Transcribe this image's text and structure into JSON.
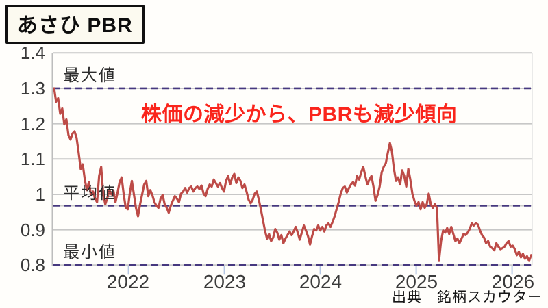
{
  "page": {
    "background": "#fffefb"
  },
  "title_box": {
    "label": "あさひ PBR"
  },
  "annotation": {
    "text": "株価の減少から、PBRも減少傾向",
    "color": "#fa251c"
  },
  "source": {
    "text": "出典　銘柄スカウター"
  },
  "chart_data": {
    "type": "line",
    "title": "あさひ PBR",
    "xlabel": "",
    "ylabel": "PBR",
    "legend": "none",
    "grid": "horizontal",
    "x_axis": {
      "range": [
        2021.21,
        2026.21
      ],
      "ticks": [
        2022,
        2023,
        2024,
        2025,
        2026
      ],
      "tick_labels": [
        "2022",
        "2023",
        "2024",
        "2025",
        "2026"
      ]
    },
    "y_axis": {
      "range": [
        0.8,
        1.4
      ],
      "tick_values": [
        1.4,
        1.3,
        1.2,
        1.1,
        1.0,
        0.9,
        0.8
      ],
      "tick_labels": [
        "1.4",
        "1.3",
        "1.2",
        "1.1",
        "1",
        "0.9",
        "0.8"
      ],
      "gridline_values": [
        1.4,
        1.2,
        1.1,
        1.0,
        0.9
      ]
    },
    "ref_lines": [
      {
        "label": "最大値",
        "value": 1.3
      },
      {
        "label": "平均値",
        "value": 0.968
      },
      {
        "label": "最小値",
        "value": 0.8
      }
    ],
    "colors": {
      "series": "#bd4b47",
      "gridline": "#c7c7c7",
      "axis": "#bdbdbd",
      "ref_dash": "#46387f",
      "ref_base": "#cbcbcb",
      "tick": "#b5c7e4"
    },
    "series": [
      {
        "name": "PBR",
        "color": "#bd4b47",
        "x_unit": "decimal_year",
        "x_first": 2021.224,
        "x_step": 0.02135,
        "values": [
          1.3,
          1.262,
          1.272,
          1.228,
          1.243,
          1.198,
          1.212,
          1.168,
          1.155,
          1.172,
          1.178,
          1.16,
          1.118,
          1.072,
          1.085,
          1.042,
          1.012,
          1.035,
          0.998,
          1.008,
          0.988,
          0.978,
          1.052,
          1.078,
          1.0,
          0.972,
          0.99,
          1.012,
          1.0,
          1.01,
          0.978,
          1.005,
          1.035,
          1.048,
          1.0,
          0.962,
          0.958,
          1.005,
          1.038,
          1.0,
          0.962,
          0.938,
          0.972,
          1.0,
          1.028,
          1.038,
          0.995,
          1.012,
          0.998,
          0.978,
          0.968,
          0.962,
          0.988,
          0.998,
          0.972,
          0.962,
          0.948,
          0.968,
          0.982,
          0.995,
          0.988,
          0.978,
          1.002,
          1.008,
          1.018,
          1.005,
          1.018,
          1.022,
          1.008,
          1.018,
          1.022,
          1.015,
          1.025,
          1.002,
          0.995,
          1.015,
          1.028,
          1.022,
          1.042,
          1.032,
          1.022,
          1.032,
          1.018,
          1.008,
          1.038,
          1.052,
          1.028,
          1.048,
          1.058,
          1.032,
          1.048,
          1.038,
          1.018,
          1.028,
          1.008,
          0.985,
          0.975,
          0.985,
          1.002,
          1.008,
          0.985,
          0.958,
          0.928,
          0.898,
          0.875,
          0.888,
          0.868,
          0.878,
          0.902,
          0.892,
          0.872,
          0.885,
          0.862,
          0.875,
          0.885,
          0.895,
          0.885,
          0.895,
          0.908,
          0.892,
          0.872,
          0.892,
          0.912,
          0.898,
          0.882,
          0.858,
          0.882,
          0.902,
          0.898,
          0.912,
          0.898,
          0.908,
          0.895,
          0.912,
          0.918,
          0.908,
          0.922,
          0.938,
          0.958,
          0.978,
          1.002,
          1.018,
          1.022,
          1.005,
          1.018,
          1.028,
          1.035,
          1.025,
          1.052,
          1.042,
          1.062,
          1.078,
          1.052,
          1.028,
          1.042,
          1.052,
          1.022,
          0.982,
          0.998,
          1.022,
          1.062,
          1.078,
          1.088,
          1.118,
          1.145,
          1.122,
          1.072,
          1.038,
          1.048,
          1.028,
          1.068,
          1.052,
          1.022,
          1.072,
          1.042,
          1.002,
          0.982,
          0.968,
          0.978,
          0.958,
          0.978,
          0.962,
          0.972,
          1.002,
          0.972,
          0.962,
          0.972,
          0.962,
          0.812,
          0.868,
          0.898,
          0.892,
          0.905,
          0.888,
          0.908,
          0.888,
          0.868,
          0.875,
          0.862,
          0.875,
          0.888,
          0.885,
          0.892,
          0.902,
          0.918,
          0.912,
          0.918,
          0.915,
          0.898,
          0.885,
          0.878,
          0.862,
          0.868,
          0.852,
          0.848,
          0.842,
          0.862,
          0.852,
          0.845,
          0.848,
          0.852,
          0.862,
          0.868,
          0.852,
          0.855,
          0.845,
          0.828,
          0.838,
          0.822,
          0.832,
          0.818,
          0.825,
          0.812,
          0.828
        ]
      }
    ]
  }
}
